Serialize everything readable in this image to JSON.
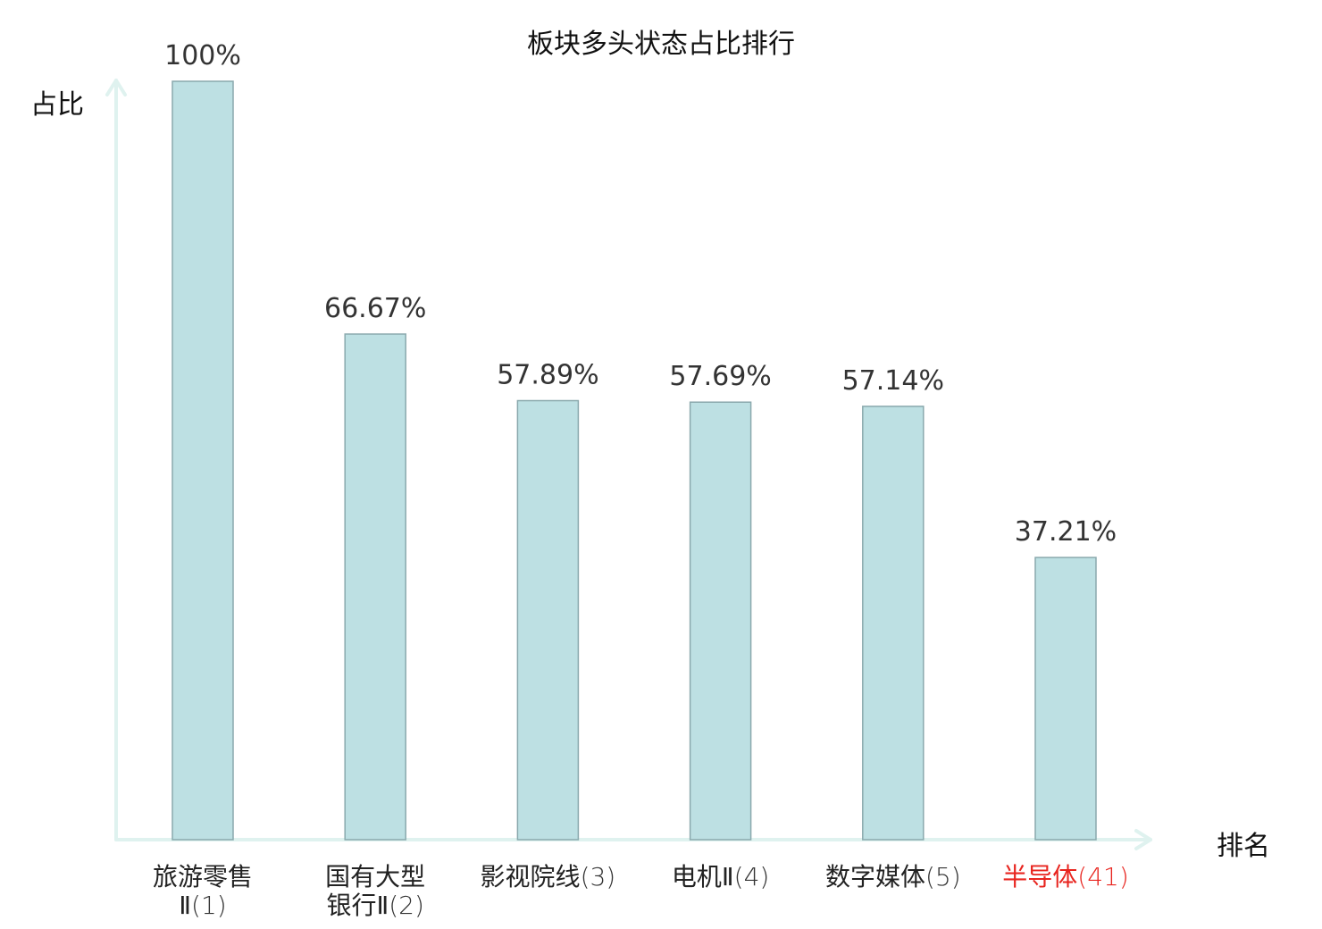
{
  "chart_data": {
    "type": "bar",
    "title": "板块多头状态占比排行",
    "ylabel": "占比",
    "xlabel": "排名",
    "ylim": [
      0,
      100
    ],
    "categories": [
      {
        "name_lines": [
          "旅游零售",
          "Ⅱ"
        ],
        "rank": "(1)",
        "highlight": false
      },
      {
        "name_lines": [
          "国有大型",
          "银行Ⅱ"
        ],
        "rank": "(2)",
        "highlight": false
      },
      {
        "name_lines": [
          "影视院线"
        ],
        "rank": "(3)",
        "highlight": false
      },
      {
        "name_lines": [
          "电机Ⅱ"
        ],
        "rank": "(4)",
        "highlight": false
      },
      {
        "name_lines": [
          "数字媒体"
        ],
        "rank": "(5)",
        "highlight": false
      },
      {
        "name_lines": [
          "半导体"
        ],
        "rank": "(41)",
        "highlight": true
      }
    ],
    "values": [
      100,
      66.67,
      57.89,
      57.69,
      57.14,
      37.21
    ],
    "value_labels": [
      "100%",
      "66.67%",
      "57.89%",
      "57.69%",
      "57.14%",
      "37.21%"
    ],
    "colors": {
      "bar_fill": "#bde0e3",
      "bar_stroke": "#8aa9ad",
      "axis": "#dff2ef",
      "label": "#333333",
      "highlight": "#e8251f"
    },
    "grid": false,
    "legend": "none"
  }
}
